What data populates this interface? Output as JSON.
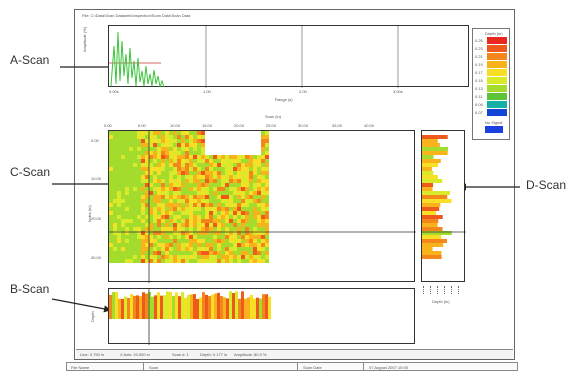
{
  "window": {
    "title": "File: C:\\Data\\Scan Datasets\\Inspection\\Scan Data\\Scan Data"
  },
  "callouts": {
    "a_scan": "A-Scan",
    "c_scan": "C-Scan",
    "b_scan": "B-Scan",
    "d_scan": "D-Scan"
  },
  "a_scan": {
    "x_ticks": [
      "0.00s",
      "1.00",
      "2.00",
      "3.00s"
    ],
    "x_label": "Range (s)",
    "y_label": "Amplitude (%)"
  },
  "c_scan": {
    "x_ticks": [
      "0.00",
      "5.00",
      "10.00",
      "15.00",
      "20.00",
      "25.00",
      "30.00",
      "35.00",
      "40.00"
    ],
    "x_label": "Scan (in)",
    "y_ticks": [
      "0.00",
      "10.00",
      "20.00",
      "30.00"
    ],
    "y_label": "Index (in)"
  },
  "b_scan": {
    "y_label": "Depth"
  },
  "d_scan": {
    "x_label": "Depth (in)"
  },
  "legend": {
    "title": "Depth (in)",
    "entries": [
      {
        "label": "0.25",
        "color": "#e8271f"
      },
      {
        "label": "0.23",
        "color": "#ee5a1c"
      },
      {
        "label": "0.21",
        "color": "#f3871c"
      },
      {
        "label": "0.19",
        "color": "#f7b21c"
      },
      {
        "label": "0.17",
        "color": "#f8df26"
      },
      {
        "label": "0.15",
        "color": "#d9ea2b"
      },
      {
        "label": "0.13",
        "color": "#a4dc2d"
      },
      {
        "label": "0.11",
        "color": "#5dc43a"
      },
      {
        "label": "0.09",
        "color": "#17b0a4"
      },
      {
        "label": "0.07",
        "color": "#1446d6"
      }
    ],
    "no_signal_label": "No Signal",
    "no_signal_color": "#1c3fe0"
  },
  "status": {
    "line": "Line: 0.750 in",
    "x": "X Axis: 20.000 in",
    "scan": "Scan #: 1",
    "depth": "Depth: 0.177 in",
    "amplitude": "Amplitude: 80.0 %"
  },
  "footer": {
    "file_name_label": "File Name",
    "scan_label": "Scan",
    "scan_date_label": "Scan Date",
    "date": "07 August 2007 10:00"
  }
}
